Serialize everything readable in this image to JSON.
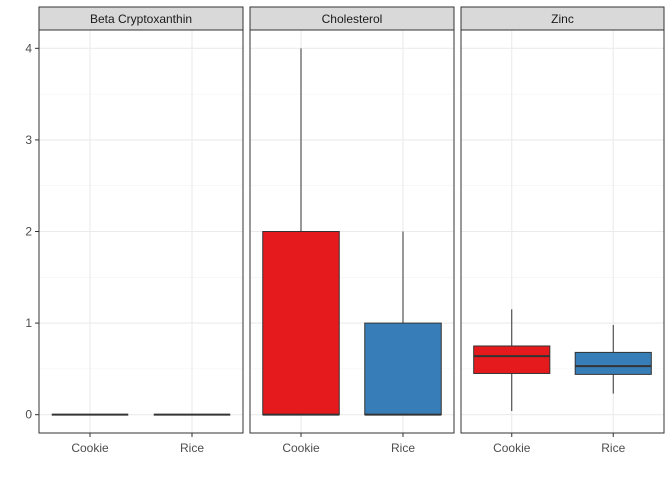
{
  "chart_data": {
    "type": "boxplot",
    "layout": "facet-wrap",
    "categories": [
      "Cookie",
      "Rice"
    ],
    "colors": {
      "Cookie": "#e41a1c",
      "Rice": "#377eb8"
    },
    "ylim": [
      -0.2,
      4.2
    ],
    "y_ticks": [
      0,
      1,
      2,
      3,
      4
    ],
    "y_tick_labels": [
      "0",
      "1",
      "2",
      "3",
      "4"
    ],
    "grid": true,
    "legend": "none",
    "facets": [
      {
        "label": "Beta Cryptoxanthin",
        "boxes": [
          {
            "category": "Cookie",
            "whisker_low": 0,
            "q1": 0,
            "median": 0,
            "q3": 0,
            "whisker_high": 0
          },
          {
            "category": "Rice",
            "whisker_low": 0,
            "q1": 0,
            "median": 0,
            "q3": 0,
            "whisker_high": 0
          }
        ]
      },
      {
        "label": "Cholesterol",
        "boxes": [
          {
            "category": "Cookie",
            "whisker_low": 0,
            "q1": 0,
            "median": 0,
            "q3": 2,
            "whisker_high": 4
          },
          {
            "category": "Rice",
            "whisker_low": 0,
            "q1": 0,
            "median": 0,
            "q3": 1,
            "whisker_high": 2
          }
        ]
      },
      {
        "label": "Zinc",
        "boxes": [
          {
            "category": "Cookie",
            "whisker_low": 0.04,
            "q1": 0.45,
            "median": 0.64,
            "q3": 0.75,
            "whisker_high": 1.15
          },
          {
            "category": "Rice",
            "whisker_low": 0.23,
            "q1": 0.44,
            "median": 0.53,
            "q3": 0.68,
            "whisker_high": 0.98
          }
        ]
      }
    ]
  }
}
